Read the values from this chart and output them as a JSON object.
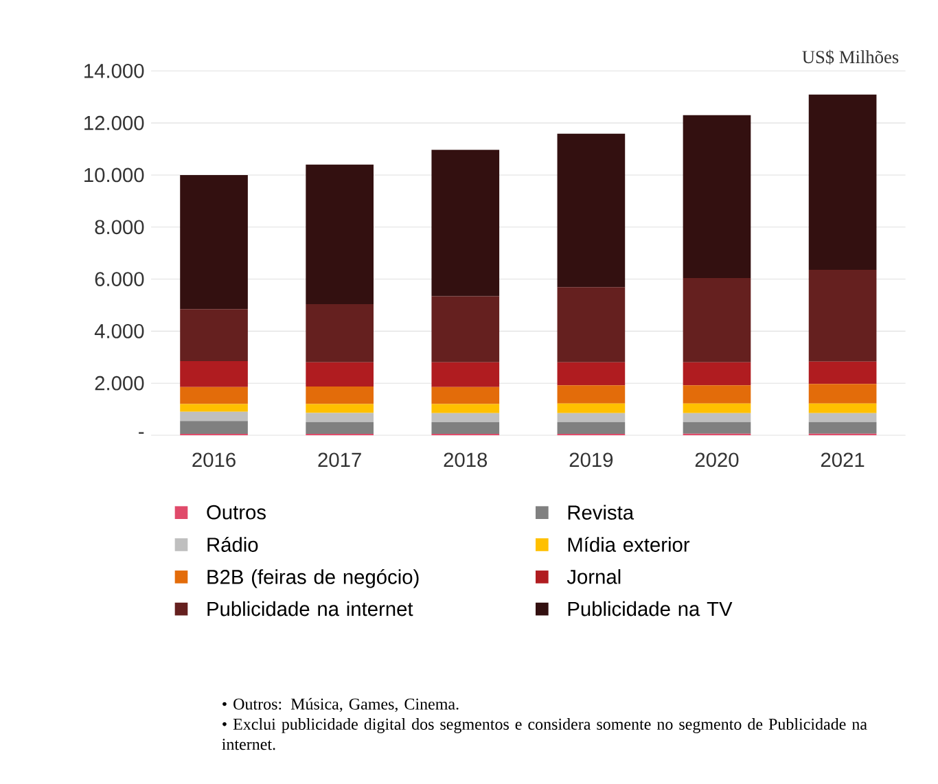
{
  "chart_data": {
    "type": "bar",
    "stacked": true,
    "categories": [
      "2016",
      "2017",
      "2018",
      "2019",
      "2020",
      "2021"
    ],
    "series": [
      {
        "name": "Outros",
        "color": "#e04a6a",
        "values": [
          50,
          50,
          50,
          50,
          60,
          60
        ]
      },
      {
        "name": "Revista",
        "color": "#808080",
        "values": [
          500,
          460,
          450,
          460,
          450,
          450
        ]
      },
      {
        "name": "Rádio",
        "color": "#bfbfbf",
        "values": [
          350,
          350,
          350,
          340,
          340,
          340
        ]
      },
      {
        "name": "Mídia exterior",
        "color": "#ffc000",
        "values": [
          300,
          340,
          350,
          370,
          370,
          370
        ]
      },
      {
        "name": "B2B (feiras de negócio)",
        "color": "#e36c0a",
        "values": [
          650,
          670,
          650,
          700,
          700,
          750
        ]
      },
      {
        "name": "Jornal",
        "color": "#b01c20",
        "values": [
          1000,
          930,
          950,
          880,
          880,
          860
        ]
      },
      {
        "name": "Publicidade na internet",
        "color": "#65201f",
        "values": [
          2000,
          2240,
          2540,
          2890,
          3240,
          3530
        ]
      },
      {
        "name": "Publicidade na TV",
        "color": "#331010",
        "values": [
          5150,
          5360,
          5630,
          5900,
          6260,
          6730
        ]
      }
    ],
    "ylim": [
      0,
      14000
    ],
    "yticks": [
      {
        "value": 0,
        "label": "-"
      },
      {
        "value": 2000,
        "label": "2.000"
      },
      {
        "value": 4000,
        "label": "4.000"
      },
      {
        "value": 6000,
        "label": "6.000"
      },
      {
        "value": 8000,
        "label": "8.000"
      },
      {
        "value": 10000,
        "label": "10.000"
      },
      {
        "value": 12000,
        "label": "12.000"
      },
      {
        "value": 14000,
        "label": "14.000"
      }
    ],
    "grid": "y",
    "legend": "bottom",
    "annotations": [
      "US$ Milhões",
      "•   Outros: Música, Games, Cinema.",
      "•   Exclui publicidade digital dos segmentos e considera somente no segmento de Publicidade na internet."
    ]
  }
}
